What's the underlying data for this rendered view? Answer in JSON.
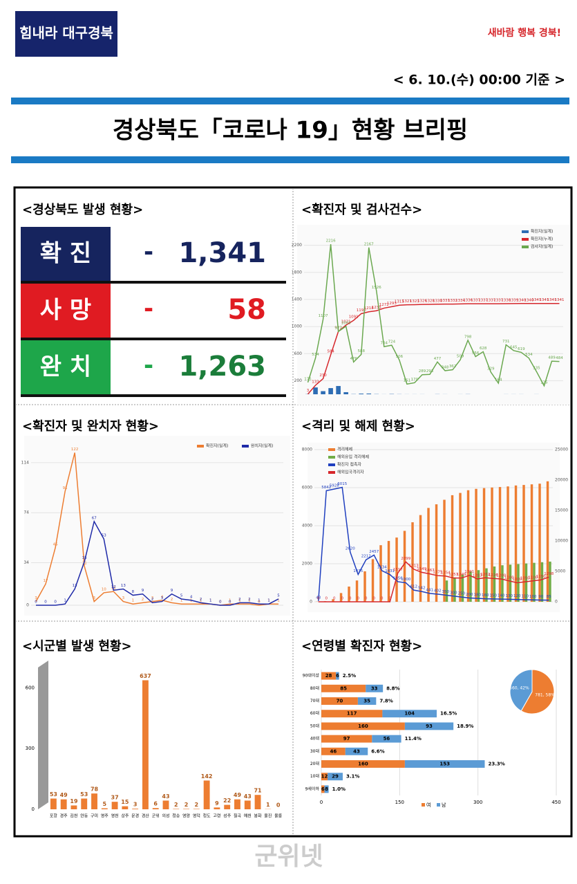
{
  "header": {
    "logo_left": "힘내라 대구경북",
    "logo_right": "새바람 행복 경북!",
    "date": "< 6. 10.(수) 00:00 기준 >",
    "title": "경상북도「코로나 19」현황 브리핑"
  },
  "status": {
    "heading": "<경상북도 발생 현황>",
    "rows": [
      {
        "label": "확 진",
        "dash": "-",
        "value": "1,341",
        "color": "#16245e",
        "text_color": "#16245e"
      },
      {
        "label": "사 망",
        "dash": "-",
        "value": "58",
        "color": "#e01b22",
        "text_color": "#e01b22"
      },
      {
        "label": "완 치",
        "dash": "-",
        "value": "1,263",
        "color": "#1ea64a",
        "text_color": "#1b7d3a"
      }
    ]
  },
  "chart_data": [
    {
      "type": "line",
      "title": "<확진자 및 검사건수>",
      "ylim": [
        0,
        2400
      ],
      "yticks": [
        200,
        600,
        1000,
        1400,
        1800,
        2200
      ],
      "legend": "right",
      "series": [
        {
          "name": "확진자(일계)",
          "type": "bar",
          "color": "#2e6db4",
          "values": [
            3,
            101,
            46,
            91,
            122,
            31,
            3,
            10,
            11,
            3,
            1,
            4,
            2,
            1,
            1,
            1,
            0,
            2,
            1,
            0,
            1,
            2,
            0,
            0,
            0,
            0,
            1,
            1,
            1,
            0,
            1,
            0,
            0,
            0
          ]
        },
        {
          "name": "확진자(누계)",
          "color": "#d6262b",
          "values": [
            3,
            133,
            230,
            584,
            927,
            1021,
            1091,
            1190,
            1218,
            1233,
            1272,
            1293,
            1315,
            1321,
            1323,
            1326,
            1328,
            1330,
            1331,
            1332,
            1334,
            1336,
            1337,
            1337,
            1337,
            1337,
            1338,
            1339,
            1340,
            1340,
            1341,
            1341,
            1341,
            1341
          ]
        },
        {
          "name": "검사자(일계)",
          "color": "#6aa84f",
          "values": [
            175,
            534,
            1107,
            2216,
            927,
            1003,
            476,
            588,
            2167,
            1526,
            704,
            724,
            506,
            151,
            170,
            289,
            293,
            477,
            348,
            362,
            509,
            798,
            556,
            628,
            329,
            164,
            731,
            645,
            619,
            534,
            335,
            125,
            489,
            484
          ]
        }
      ]
    },
    {
      "type": "line",
      "title": "<확진자 및 완치자 현황>",
      "ylim": [
        0,
        130
      ],
      "yticks": [
        0,
        34,
        74,
        114
      ],
      "legend": "top",
      "series": [
        {
          "name": "확진자(일계)",
          "color": "#ed7d31",
          "values": [
            3,
            17,
            46,
            91,
            122,
            31,
            3,
            10,
            11,
            3,
            1,
            2,
            3,
            4,
            2,
            1,
            1,
            1,
            1,
            0,
            1,
            1,
            1,
            0,
            1,
            1
          ]
        },
        {
          "name": "완치자(일계)",
          "color": "#1f2aa8",
          "values": [
            0,
            0,
            0,
            1,
            13,
            35,
            67,
            53,
            12,
            13,
            8,
            9,
            2,
            3,
            9,
            5,
            4,
            2,
            1,
            0,
            0,
            2,
            2,
            1,
            1,
            5
          ]
        }
      ]
    },
    {
      "type": "line",
      "title": "<격리 및 해제 현황>",
      "ylim": [
        0,
        8000
      ],
      "yticks": [
        0,
        2000,
        4000,
        6000,
        8000
      ],
      "y2lim": [
        0,
        25000
      ],
      "y2ticks": [
        0,
        5000,
        10000,
        15000,
        20000,
        25000
      ],
      "legend": "left",
      "series": [
        {
          "name": "격리해제",
          "type": "bar",
          "axis": "y2",
          "color": "#ed7d31",
          "values": [
            29,
            98,
            425,
            1435,
            2500,
            3500,
            5000,
            7000,
            9297,
            9993,
            10554,
            11653,
            13063,
            14246,
            15417,
            16014,
            16759,
            17510,
            17884,
            18327,
            18553,
            18677,
            18776,
            18855,
            18952,
            19109,
            19194,
            19294,
            19405,
            19793
          ]
        },
        {
          "name": "해외유입 격리해제",
          "type": "bar",
          "axis": "y2",
          "color": "#70ad47",
          "values": [
            0,
            0,
            0,
            0,
            0,
            0,
            0,
            0,
            0,
            0,
            0,
            0,
            0,
            0,
            0,
            0,
            3500,
            4000,
            4500,
            5000,
            5200,
            5500,
            5800,
            6000,
            6100,
            6200,
            6300,
            6400,
            6500,
            6600
          ]
        },
        {
          "name": "확진자 접촉자",
          "color": "#1f3fbf",
          "values": [
            43,
            5842,
            5928,
            6015,
            2620,
            1435,
            2212,
            2457,
            1634,
            1431,
            1056,
            1000,
            612,
            542,
            441,
            402,
            350,
            300,
            250,
            200,
            180,
            160,
            150,
            140,
            130,
            120,
            110,
            100,
            90,
            85
          ]
        },
        {
          "name": "해외입국격리자",
          "color": "#d6262b",
          "values": [
            0,
            0,
            0,
            0,
            0,
            0,
            0,
            0,
            0,
            0,
            1517,
            2099,
            1713,
            1549,
            1467,
            1375,
            1354,
            1251,
            1249,
            1391,
            1203,
            1262,
            1226,
            1200,
            1100,
            1000,
            1050,
            1100,
            1150,
            1298
          ]
        }
      ]
    },
    {
      "type": "bar",
      "title": "<시군별 발생 현황>",
      "color": "#ed7d31",
      "ylim": [
        0,
        700
      ],
      "yticks": [
        0,
        300,
        600
      ],
      "categories": [
        "포항",
        "경주",
        "김천",
        "안동",
        "구미",
        "영주",
        "영천",
        "상주",
        "문경",
        "경산",
        "군위",
        "의성",
        "청송",
        "영양",
        "영덕",
        "청도",
        "고령",
        "성주",
        "칠곡",
        "예천",
        "봉화",
        "울진",
        "울릉"
      ],
      "values": [
        53,
        49,
        19,
        53,
        78,
        5,
        37,
        15,
        3,
        637,
        6,
        43,
        2,
        2,
        2,
        142,
        9,
        22,
        49,
        43,
        71,
        1,
        0
      ]
    },
    {
      "type": "hbar",
      "title": "<연령별 확진자 현황>",
      "xlim": [
        0,
        450
      ],
      "xticks": [
        0,
        150,
        300,
        450
      ],
      "categories": [
        "90대이상",
        "80대",
        "70대",
        "60대",
        "50대",
        "40대",
        "30대",
        "20대",
        "10대",
        "9세이하"
      ],
      "series": [
        {
          "name": "여",
          "color": "#ed7d31",
          "values": [
            28,
            85,
            70,
            117,
            160,
            97,
            46,
            160,
            12,
            6
          ]
        },
        {
          "name": "남",
          "color": "#5b9bd5",
          "values": [
            6,
            33,
            35,
            104,
            93,
            56,
            43,
            153,
            29,
            8
          ]
        }
      ],
      "percent_labels": [
        "2.5%",
        "8.8%",
        "7.8%",
        "16.5%",
        "18.9%",
        "11.4%",
        "6.6%",
        "23.3%",
        "3.1%",
        "1.0%"
      ],
      "pie": {
        "values": [
          781,
          560
        ],
        "value_labels": [
          "781, 58%",
          "560, 42%"
        ]
      }
    }
  ],
  "footer": {
    "watermark": "군위넷"
  }
}
